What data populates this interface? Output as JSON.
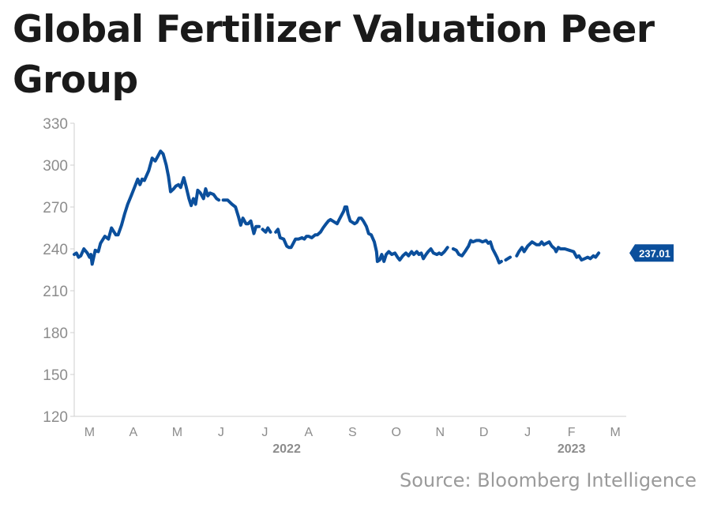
{
  "title": "Global Fertilizer Valuation Peer Group",
  "source": "Source: Bloomberg Intelligence",
  "colors": {
    "line": "#0b4f9c",
    "axis": "#cfcfcf",
    "tick_text": "#8c8c8c",
    "title": "#1a1a1a",
    "source": "#9a9a9a"
  },
  "chart_data": {
    "type": "line",
    "title": "Global Fertilizer Valuation Peer Group",
    "xlabel": "",
    "ylabel": "",
    "ylim": [
      120,
      330
    ],
    "yticks": [
      120,
      150,
      180,
      210,
      240,
      270,
      300,
      330
    ],
    "xlim": [
      0,
      12.6
    ],
    "x_ticks": [
      {
        "x": 0.35,
        "label": "M"
      },
      {
        "x": 1.35,
        "label": "A"
      },
      {
        "x": 2.35,
        "label": "M"
      },
      {
        "x": 3.35,
        "label": "J"
      },
      {
        "x": 4.35,
        "label": "J"
      },
      {
        "x": 5.35,
        "label": "A"
      },
      {
        "x": 6.35,
        "label": "S"
      },
      {
        "x": 7.35,
        "label": "O"
      },
      {
        "x": 8.35,
        "label": "N"
      },
      {
        "x": 9.35,
        "label": "D"
      },
      {
        "x": 10.35,
        "label": "J"
      },
      {
        "x": 11.35,
        "label": "F"
      },
      {
        "x": 12.35,
        "label": "M"
      }
    ],
    "year_labels": [
      {
        "x": 4.85,
        "label": "2022"
      },
      {
        "x": 11.35,
        "label": "2023"
      }
    ],
    "grid": false,
    "last_value": "237.01",
    "series": [
      {
        "segments": [
          [
            [
              0.0,
              236
            ],
            [
              0.05,
              237
            ],
            [
              0.1,
              234
            ],
            [
              0.15,
              235
            ],
            [
              0.22,
              240
            ],
            [
              0.3,
              237
            ],
            [
              0.35,
              234
            ],
            [
              0.38,
              236
            ],
            [
              0.41,
              229
            ],
            [
              0.48,
              239
            ],
            [
              0.55,
              238
            ],
            [
              0.6,
              244
            ],
            [
              0.7,
              249
            ],
            [
              0.78,
              247
            ],
            [
              0.85,
              255
            ],
            [
              0.95,
              250
            ],
            [
              1.0,
              250
            ],
            [
              1.08,
              257
            ],
            [
              1.15,
              265
            ],
            [
              1.22,
              272
            ],
            [
              1.3,
              278
            ],
            [
              1.4,
              286
            ],
            [
              1.45,
              290
            ],
            [
              1.5,
              286
            ],
            [
              1.55,
              290
            ],
            [
              1.6,
              289
            ],
            [
              1.7,
              296
            ],
            [
              1.78,
              305
            ],
            [
              1.85,
              303
            ],
            [
              1.92,
              307
            ],
            [
              1.97,
              310
            ],
            [
              2.03,
              308
            ],
            [
              2.1,
              300
            ],
            [
              2.15,
              292
            ],
            [
              2.2,
              281
            ],
            [
              2.27,
              283
            ],
            [
              2.32,
              285
            ],
            [
              2.38,
              286
            ],
            [
              2.43,
              284
            ],
            [
              2.5,
              291
            ],
            [
              2.55,
              285
            ],
            [
              2.62,
              276
            ],
            [
              2.67,
              271
            ],
            [
              2.72,
              276
            ],
            [
              2.77,
              272
            ],
            [
              2.82,
              282
            ],
            [
              2.88,
              280
            ],
            [
              2.95,
              276
            ],
            [
              3.0,
              283
            ],
            [
              3.05,
              278
            ],
            [
              3.1,
              280
            ],
            [
              3.18,
              279
            ],
            [
              3.25,
              276
            ],
            [
              3.3,
              275
            ]
          ],
          [
            [
              3.4,
              275
            ],
            [
              3.5,
              275
            ],
            [
              3.6,
              272
            ],
            [
              3.68,
              270
            ],
            [
              3.75,
              263
            ],
            [
              3.8,
              257
            ],
            [
              3.85,
              262
            ],
            [
              3.92,
              258
            ],
            [
              3.97,
              258
            ],
            [
              4.03,
              260
            ],
            [
              4.1,
              251
            ],
            [
              4.15,
              256
            ],
            [
              4.22,
              256
            ]
          ],
          [
            [
              4.3,
              254
            ],
            [
              4.37,
              252
            ],
            [
              4.42,
              255
            ],
            [
              4.48,
              252
            ]
          ],
          [
            [
              4.6,
              252
            ],
            [
              4.65,
              254
            ],
            [
              4.7,
              248
            ],
            [
              4.78,
              247
            ],
            [
              4.85,
              242
            ],
            [
              4.9,
              241
            ],
            [
              4.95,
              241
            ],
            [
              5.0,
              244
            ],
            [
              5.05,
              247
            ],
            [
              5.12,
              247
            ],
            [
              5.2,
              248
            ],
            [
              5.25,
              247
            ],
            [
              5.3,
              249
            ],
            [
              5.35,
              249
            ],
            [
              5.42,
              248
            ],
            [
              5.5,
              250
            ],
            [
              5.55,
              250
            ],
            [
              5.62,
              252
            ],
            [
              5.68,
              255
            ],
            [
              5.75,
              258
            ],
            [
              5.8,
              260
            ],
            [
              5.85,
              261
            ],
            [
              5.9,
              260
            ],
            [
              5.95,
              259
            ],
            [
              6.0,
              258
            ],
            [
              6.05,
              261
            ],
            [
              6.1,
              264
            ],
            [
              6.15,
              267
            ],
            [
              6.18,
              270
            ],
            [
              6.22,
              270
            ],
            [
              6.25,
              265
            ],
            [
              6.3,
              260
            ],
            [
              6.35,
              259
            ],
            [
              6.4,
              258
            ],
            [
              6.45,
              259
            ],
            [
              6.5,
              262
            ],
            [
              6.55,
              262
            ],
            [
              6.6,
              260
            ],
            [
              6.67,
              256
            ],
            [
              6.72,
              251
            ],
            [
              6.78,
              250
            ],
            [
              6.85,
              245
            ],
            [
              6.9,
              238
            ],
            [
              6.92,
              231
            ],
            [
              6.97,
              232
            ],
            [
              7.02,
              236
            ],
            [
              7.07,
              231
            ],
            [
              7.12,
              236
            ],
            [
              7.18,
              238
            ],
            [
              7.25,
              236
            ],
            [
              7.32,
              237
            ],
            [
              7.38,
              234
            ],
            [
              7.43,
              232
            ],
            [
              7.5,
              235
            ],
            [
              7.57,
              237
            ],
            [
              7.63,
              235
            ],
            [
              7.7,
              238
            ],
            [
              7.75,
              236
            ],
            [
              7.82,
              238
            ],
            [
              7.87,
              236
            ],
            [
              7.92,
              237
            ],
            [
              7.97,
              233
            ],
            [
              8.03,
              236
            ],
            [
              8.08,
              238
            ],
            [
              8.14,
              240
            ],
            [
              8.2,
              237
            ],
            [
              8.28,
              236
            ],
            [
              8.33,
              237
            ],
            [
              8.38,
              236
            ],
            [
              8.45,
              238
            ],
            [
              8.52,
              241
            ]
          ],
          [
            [
              8.65,
              240
            ],
            [
              8.72,
              239
            ],
            [
              8.78,
              236
            ],
            [
              8.85,
              235
            ],
            [
              8.92,
              238
            ],
            [
              9.0,
              242
            ],
            [
              9.05,
              246
            ],
            [
              9.1,
              245
            ],
            [
              9.18,
              246
            ],
            [
              9.25,
              246
            ],
            [
              9.32,
              245
            ],
            [
              9.4,
              246
            ],
            [
              9.45,
              244
            ],
            [
              9.5,
              245
            ],
            [
              9.55,
              240
            ],
            [
              9.6,
              237
            ],
            [
              9.65,
              234
            ],
            [
              9.7,
              230
            ],
            [
              9.75,
              231
            ]
          ],
          [
            [
              9.85,
              232
            ],
            [
              9.95,
              234
            ]
          ],
          [
            [
              10.1,
              235
            ],
            [
              10.15,
              238
            ],
            [
              10.22,
              241
            ],
            [
              10.27,
              238
            ],
            [
              10.35,
              242
            ],
            [
              10.45,
              245
            ],
            [
              10.55,
              243
            ],
            [
              10.62,
              243
            ],
            [
              10.67,
              245
            ],
            [
              10.72,
              243
            ],
            [
              10.78,
              244
            ],
            [
              10.84,
              245
            ],
            [
              10.9,
              242
            ],
            [
              10.97,
              240
            ],
            [
              11.0,
              238
            ],
            [
              11.05,
              241
            ],
            [
              11.1,
              240
            ],
            [
              11.2,
              240
            ],
            [
              11.3,
              239
            ],
            [
              11.4,
              238
            ],
            [
              11.47,
              234
            ],
            [
              11.52,
              235
            ],
            [
              11.58,
              232
            ],
            [
              11.65,
              233
            ],
            [
              11.72,
              234
            ],
            [
              11.78,
              233
            ],
            [
              11.85,
              235
            ],
            [
              11.9,
              234
            ],
            [
              11.97,
              237
            ]
          ]
        ]
      }
    ]
  }
}
